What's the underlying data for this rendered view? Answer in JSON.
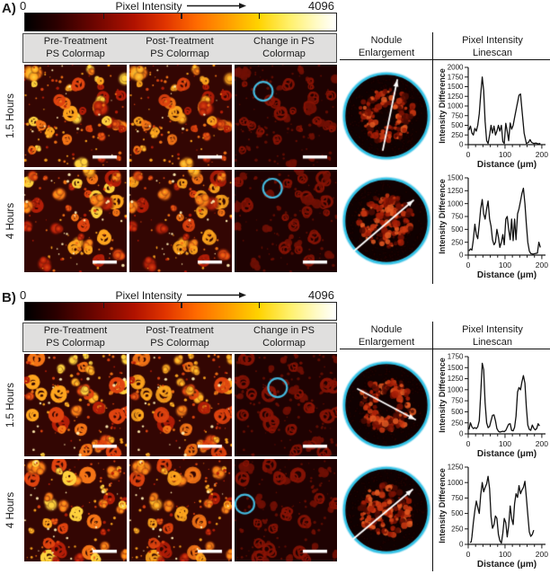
{
  "colors": {
    "accent_cyan": "#45b8dc",
    "nodule_rim": "#35c3e6",
    "image_bg": "#330603",
    "change_bg": "#1f0202",
    "axis": "#1a1a1a",
    "scalebar": "#ffffff",
    "header_bg": "#e0dfde",
    "blob_palette": [
      "#b41e08",
      "#e04410",
      "#f57517",
      "#ffa51e",
      "#ffd23e"
    ],
    "change_ring": "#8a1405",
    "change_fill": "#701004",
    "colorbar_stops": [
      [
        0,
        "#000000"
      ],
      [
        10,
        "#2b0000"
      ],
      [
        22,
        "#6b0500"
      ],
      [
        35,
        "#b01200"
      ],
      [
        45,
        "#e03400"
      ],
      [
        55,
        "#ff6a00"
      ],
      [
        65,
        "#ff9d00"
      ],
      [
        75,
        "#ffd200"
      ],
      [
        85,
        "#fff06a"
      ],
      [
        94,
        "#fffbc8"
      ],
      [
        100,
        "#ffffff"
      ]
    ]
  },
  "icons": {
    "colorbar_arrow": "right-arrow",
    "nodule_arrow": "white-linescan-direction-arrow"
  },
  "panels": [
    {
      "label": "A)",
      "colorbar": {
        "min": "0",
        "max": "4096",
        "title": "Pixel Intensity"
      },
      "columns": [
        {
          "l1": "Pre-Treatment",
          "l2": "PS Colormap"
        },
        {
          "l1": "Post-Treatment",
          "l2": "PS Colormap"
        },
        {
          "l1": "Change in PS",
          "l2": "Colormap"
        }
      ],
      "nodule_header": {
        "l1": "Nodule",
        "l2": "Enlargement"
      },
      "linescan_header": {
        "l1": "Pixel Intensity",
        "l2": "Linescan"
      },
      "rows": [
        {
          "time_label": "1.5 Hours",
          "images": [
            {
              "kind": "pre",
              "seed": 11,
              "scalebar": true
            },
            {
              "kind": "post",
              "seed": 11,
              "scalebar": true
            },
            {
              "kind": "change",
              "seed": 11,
              "scalebar": true,
              "circle": [
                0.28,
                0.26
              ]
            }
          ],
          "nodule": {
            "seed": 71,
            "style": "ring",
            "arrow": [
              46,
              88,
              62,
              10
            ]
          },
          "chart": 0
        },
        {
          "time_label": "4 Hours",
          "images": [
            {
              "kind": "pre",
              "seed": 22,
              "scalebar": true
            },
            {
              "kind": "post",
              "seed": 22,
              "scalebar": true
            },
            {
              "kind": "change",
              "seed": 22,
              "scalebar": true,
              "circle": [
                0.37,
                0.18
              ]
            }
          ],
          "nodule": {
            "seed": 72,
            "style": "disk",
            "arrow": [
              12,
              85,
              80,
              27
            ]
          },
          "chart": 1
        }
      ]
    },
    {
      "label": "B)",
      "colorbar": {
        "min": "0",
        "max": "4096",
        "title": "Pixel Intensity"
      },
      "columns": [
        {
          "l1": "Pre-Treatment",
          "l2": "PS Colormap"
        },
        {
          "l1": "Post-Treatment",
          "l2": "PS Colormap"
        },
        {
          "l1": "Change in PS",
          "l2": "Colormap"
        }
      ],
      "nodule_header": {
        "l1": "Nodule",
        "l2": "Enlargement"
      },
      "linescan_header": {
        "l1": "Pixel Intensity",
        "l2": "Linescan"
      },
      "rows": [
        {
          "time_label": "1.5 Hours",
          "images": [
            {
              "kind": "pre",
              "seed": 33,
              "scalebar": true
            },
            {
              "kind": "post",
              "seed": 33,
              "scalebar": true
            },
            {
              "kind": "change",
              "seed": 33,
              "scalebar": true,
              "circle": [
                0.42,
                0.33
              ]
            }
          ],
          "nodule": {
            "seed": 73,
            "style": "ring",
            "arrow": [
              18,
              32,
              82,
              66
            ]
          },
          "chart": 2
        },
        {
          "time_label": "4 Hours",
          "images": [
            {
              "kind": "pre",
              "seed": 44,
              "scalebar": true
            },
            {
              "kind": "post",
              "seed": 44,
              "scalebar": true
            },
            {
              "kind": "change",
              "seed": 44,
              "scalebar": true,
              "circle": [
                0.1,
                0.44
              ]
            }
          ],
          "nodule": {
            "seed": 74,
            "style": "disk",
            "arrow": [
              13,
              82,
              79,
              27
            ]
          },
          "chart": 3
        }
      ]
    }
  ],
  "chart_data": [
    {
      "type": "line",
      "title": "Panel A 1.5 Hours linescan",
      "xlabel": "Distance (μm)",
      "ylabel": "Intensity Difference",
      "xlim": [
        0,
        210
      ],
      "ylim": [
        0,
        2000
      ],
      "xticks": [
        0,
        100,
        200
      ],
      "xminor_step": 20,
      "yticks": [
        0,
        250,
        500,
        750,
        1000,
        1250,
        1500,
        1750,
        2000
      ],
      "grid": false,
      "legend": "none",
      "points": [
        [
          2,
          380
        ],
        [
          6,
          480
        ],
        [
          10,
          300
        ],
        [
          14,
          250
        ],
        [
          18,
          420
        ],
        [
          22,
          350
        ],
        [
          26,
          500
        ],
        [
          30,
          800
        ],
        [
          34,
          1300
        ],
        [
          38,
          1750
        ],
        [
          42,
          1400
        ],
        [
          46,
          600
        ],
        [
          50,
          100
        ],
        [
          54,
          30
        ],
        [
          58,
          250
        ],
        [
          62,
          500
        ],
        [
          66,
          300
        ],
        [
          70,
          480
        ],
        [
          74,
          250
        ],
        [
          78,
          350
        ],
        [
          82,
          500
        ],
        [
          86,
          350
        ],
        [
          90,
          500
        ],
        [
          94,
          80
        ],
        [
          98,
          30
        ],
        [
          102,
          550
        ],
        [
          106,
          350
        ],
        [
          110,
          100
        ],
        [
          114,
          560
        ],
        [
          118,
          400
        ],
        [
          122,
          500
        ],
        [
          126,
          700
        ],
        [
          132,
          1000
        ],
        [
          138,
          1280
        ],
        [
          142,
          1310
        ],
        [
          146,
          900
        ],
        [
          152,
          300
        ],
        [
          158,
          30
        ],
        [
          164,
          60
        ],
        [
          168,
          130
        ],
        [
          172,
          60
        ],
        [
          178,
          30
        ],
        [
          184,
          40
        ],
        [
          190,
          20
        ],
        [
          196,
          30
        ]
      ]
    },
    {
      "type": "line",
      "title": "Panel A 4 Hours linescan",
      "xlabel": "Distance (μm)",
      "ylabel": "Intensity Difference",
      "xlim": [
        0,
        210
      ],
      "ylim": [
        0,
        1500
      ],
      "xticks": [
        0,
        100,
        200
      ],
      "xminor_step": 20,
      "yticks": [
        0,
        250,
        500,
        750,
        1000,
        1250,
        1500
      ],
      "grid": false,
      "legend": "none",
      "points": [
        [
          2,
          80
        ],
        [
          6,
          120
        ],
        [
          10,
          100
        ],
        [
          14,
          300
        ],
        [
          18,
          600
        ],
        [
          22,
          400
        ],
        [
          26,
          320
        ],
        [
          30,
          600
        ],
        [
          34,
          900
        ],
        [
          38,
          1080
        ],
        [
          42,
          800
        ],
        [
          46,
          700
        ],
        [
          50,
          900
        ],
        [
          54,
          1050
        ],
        [
          58,
          700
        ],
        [
          62,
          560
        ],
        [
          66,
          300
        ],
        [
          70,
          200
        ],
        [
          74,
          250
        ],
        [
          78,
          500
        ],
        [
          82,
          350
        ],
        [
          86,
          150
        ],
        [
          90,
          250
        ],
        [
          94,
          400
        ],
        [
          98,
          200
        ],
        [
          102,
          700
        ],
        [
          106,
          750
        ],
        [
          110,
          500
        ],
        [
          114,
          300
        ],
        [
          118,
          700
        ],
        [
          122,
          280
        ],
        [
          126,
          700
        ],
        [
          130,
          300
        ],
        [
          134,
          800
        ],
        [
          138,
          900
        ],
        [
          142,
          1050
        ],
        [
          146,
          1200
        ],
        [
          150,
          1300
        ],
        [
          154,
          1000
        ],
        [
          158,
          600
        ],
        [
          162,
          250
        ],
        [
          166,
          80
        ],
        [
          170,
          30
        ],
        [
          176,
          20
        ],
        [
          182,
          30
        ],
        [
          188,
          40
        ],
        [
          192,
          250
        ],
        [
          196,
          150
        ]
      ]
    },
    {
      "type": "line",
      "title": "Panel B 1.5 Hours linescan",
      "xlabel": "Distance (μm)",
      "ylabel": "Intensity Difference",
      "xlim": [
        0,
        210
      ],
      "ylim": [
        0,
        1750
      ],
      "xticks": [
        0,
        100,
        200
      ],
      "xminor_step": 20,
      "yticks": [
        0,
        250,
        500,
        750,
        1000,
        1250,
        1500,
        1750
      ],
      "grid": false,
      "legend": "none",
      "points": [
        [
          2,
          100
        ],
        [
          6,
          250
        ],
        [
          10,
          160
        ],
        [
          14,
          120
        ],
        [
          18,
          140
        ],
        [
          22,
          120
        ],
        [
          26,
          160
        ],
        [
          30,
          300
        ],
        [
          34,
          900
        ],
        [
          38,
          1600
        ],
        [
          42,
          1450
        ],
        [
          46,
          700
        ],
        [
          50,
          250
        ],
        [
          54,
          140
        ],
        [
          58,
          170
        ],
        [
          62,
          300
        ],
        [
          66,
          420
        ],
        [
          70,
          430
        ],
        [
          74,
          300
        ],
        [
          78,
          120
        ],
        [
          82,
          60
        ],
        [
          86,
          40
        ],
        [
          90,
          50
        ],
        [
          94,
          60
        ],
        [
          98,
          50
        ],
        [
          102,
          80
        ],
        [
          106,
          150
        ],
        [
          110,
          220
        ],
        [
          114,
          230
        ],
        [
          118,
          80
        ],
        [
          122,
          70
        ],
        [
          126,
          150
        ],
        [
          130,
          400
        ],
        [
          134,
          950
        ],
        [
          138,
          1050
        ],
        [
          142,
          1000
        ],
        [
          146,
          1180
        ],
        [
          150,
          1320
        ],
        [
          154,
          1150
        ],
        [
          158,
          600
        ],
        [
          162,
          200
        ],
        [
          166,
          100
        ],
        [
          170,
          80
        ],
        [
          174,
          200
        ],
        [
          178,
          130
        ],
        [
          182,
          90
        ],
        [
          186,
          120
        ],
        [
          190,
          230
        ],
        [
          194,
          180
        ]
      ]
    },
    {
      "type": "line",
      "title": "Panel B 4 Hours linescan",
      "xlabel": "Distance (μm)",
      "ylabel": "Intensity Difference",
      "xlim": [
        0,
        210
      ],
      "ylim": [
        0,
        1250
      ],
      "xticks": [
        0,
        100,
        200
      ],
      "xminor_step": 20,
      "yticks": [
        0,
        250,
        500,
        750,
        1000,
        1250
      ],
      "grid": false,
      "legend": "none",
      "points": [
        [
          5,
          30
        ],
        [
          8,
          40
        ],
        [
          10,
          120
        ],
        [
          14,
          350
        ],
        [
          18,
          550
        ],
        [
          22,
          700
        ],
        [
          26,
          600
        ],
        [
          30,
          500
        ],
        [
          34,
          800
        ],
        [
          38,
          1000
        ],
        [
          42,
          850
        ],
        [
          46,
          920
        ],
        [
          50,
          980
        ],
        [
          54,
          1100
        ],
        [
          58,
          900
        ],
        [
          62,
          450
        ],
        [
          66,
          260
        ],
        [
          70,
          320
        ],
        [
          74,
          460
        ],
        [
          78,
          420
        ],
        [
          82,
          160
        ],
        [
          86,
          60
        ],
        [
          90,
          20
        ],
        [
          94,
          180
        ],
        [
          98,
          420
        ],
        [
          102,
          350
        ],
        [
          106,
          120
        ],
        [
          110,
          300
        ],
        [
          114,
          620
        ],
        [
          118,
          420
        ],
        [
          122,
          320
        ],
        [
          126,
          660
        ],
        [
          130,
          820
        ],
        [
          134,
          760
        ],
        [
          138,
          950
        ],
        [
          142,
          820
        ],
        [
          146,
          880
        ],
        [
          150,
          920
        ],
        [
          154,
          1020
        ],
        [
          158,
          760
        ],
        [
          162,
          480
        ],
        [
          166,
          200
        ],
        [
          170,
          130
        ],
        [
          174,
          160
        ],
        [
          178,
          230
        ]
      ]
    }
  ]
}
